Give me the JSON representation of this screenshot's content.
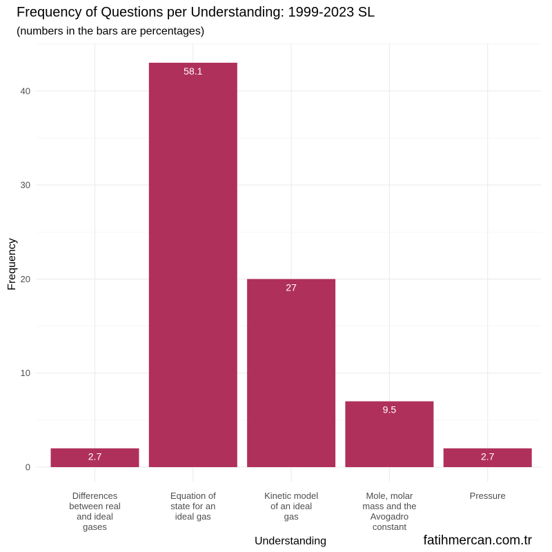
{
  "chart_data": {
    "type": "bar",
    "title": "Frequency of Questions per Understanding: 1999-2023 SL",
    "subtitle": "(numbers in the bars are percentages)",
    "xlabel": "Understanding",
    "ylabel": "Frequency",
    "categories": [
      "Differences between real and ideal gases",
      "Equation of state for an ideal gas",
      "Kinetic model of an ideal gas",
      "Mole, molar mass and the Avogadro constant",
      "Pressure"
    ],
    "category_label_lines": [
      [
        "Differences",
        "between real",
        "and ideal",
        "gases"
      ],
      [
        "Equation of",
        "state for an",
        "ideal gas"
      ],
      [
        "Kinetic model",
        "of an ideal",
        "gas"
      ],
      [
        "Mole, molar",
        "mass and the",
        "Avogadro",
        "constant"
      ],
      [
        "Pressure"
      ]
    ],
    "values": [
      2,
      43,
      20,
      7,
      2
    ],
    "percent_labels": [
      "2.7",
      "58.1",
      "27",
      "9.5",
      "2.7"
    ],
    "y_ticks": [
      0,
      10,
      20,
      30,
      40
    ],
    "y_tick_labels": [
      "0",
      "10",
      "20",
      "30",
      "40"
    ],
    "ylim": [
      0,
      45
    ],
    "grid": true,
    "caption": "fatihmercan.com.tr",
    "colors": {
      "bar": "#b0305c",
      "grid_major": "#ebebeb",
      "grid_minor": "#f4f4f4",
      "data_label": "#ffffff",
      "tick_label": "#4d4d4d",
      "text": "#000000"
    }
  }
}
